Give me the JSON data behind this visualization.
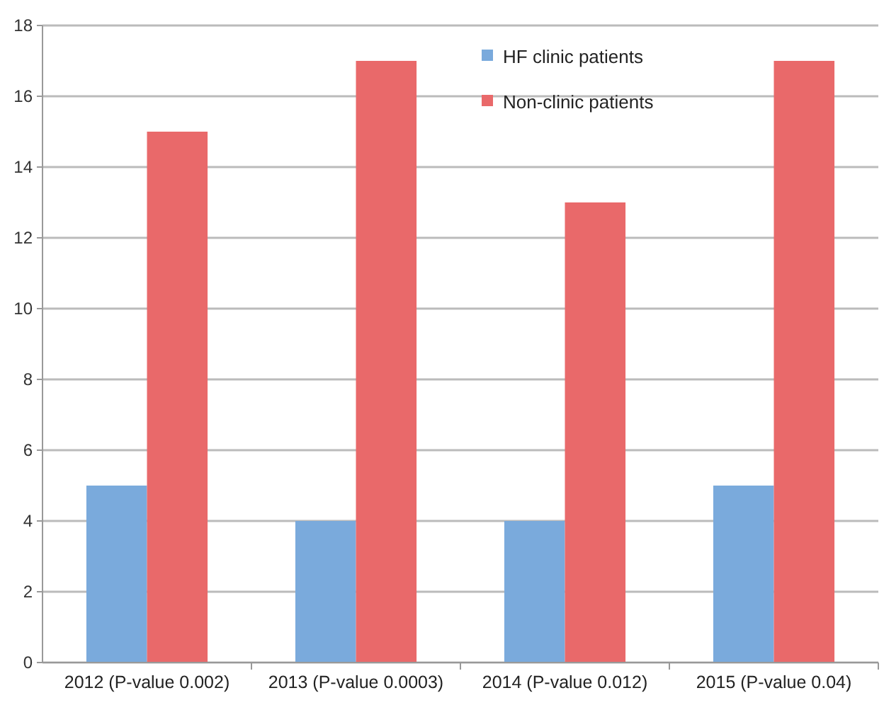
{
  "chart_data": {
    "type": "bar",
    "categories": [
      "2012 (P-value 0.002)",
      "2013 (P-value 0.0003)",
      "2014 (P-value 0.012)",
      "2015 (P-value 0.04)"
    ],
    "series": [
      {
        "name": "HF clinic patients",
        "color": "#7aaadc",
        "values": [
          5,
          4,
          4,
          5
        ]
      },
      {
        "name": "Non-clinic patients",
        "color": "#e9696a",
        "values": [
          15,
          17,
          13,
          17
        ]
      }
    ],
    "ylim": [
      0,
      18
    ],
    "yticks": [
      0,
      2,
      4,
      6,
      8,
      10,
      12,
      14,
      16,
      18
    ],
    "grid": "y",
    "legend": "top right"
  }
}
